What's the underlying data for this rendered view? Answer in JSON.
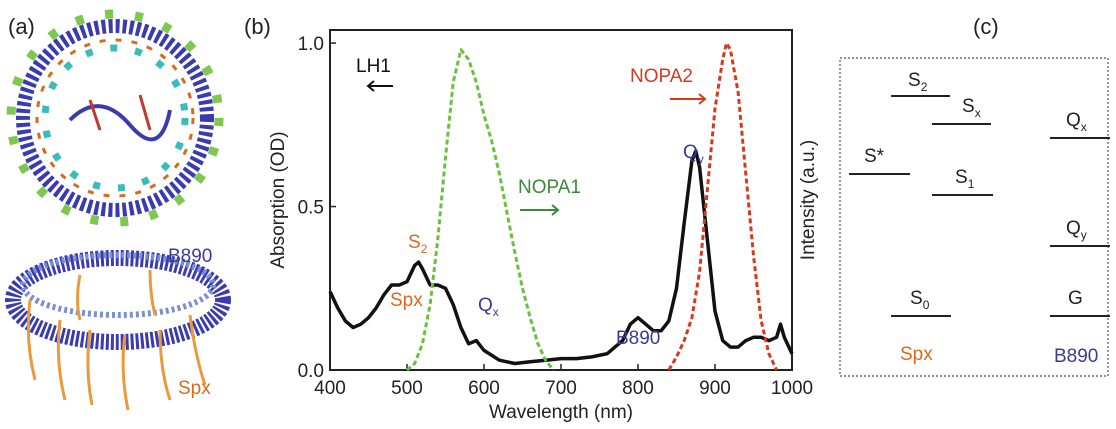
{
  "panel_labels": [
    "(a)",
    "(b)",
    "(c)"
  ],
  "panel_a": {
    "labels": [
      "B890",
      "Spx"
    ]
  },
  "chart_data": {
    "type": "line",
    "xlabel": "Wavelength (nm)",
    "ylabel": "Absorption (OD)",
    "y2label": "Intensity (a.u.)",
    "xlim": [
      400,
      1000
    ],
    "ylim": [
      0,
      1.04
    ],
    "xticks": [
      400,
      500,
      600,
      700,
      800,
      900,
      1000
    ],
    "yticks": [
      {
        "value": 0,
        "label": "0.0"
      },
      {
        "value": 0.5,
        "label": "0.5"
      },
      {
        "value": 1,
        "label": "1.0"
      }
    ],
    "series": [
      {
        "name": "LH1",
        "color": "#111111",
        "dashed": false,
        "x": [
          400,
          410,
          420,
          430,
          440,
          450,
          460,
          470,
          480,
          490,
          500,
          510,
          515,
          520,
          530,
          540,
          550,
          560,
          570,
          580,
          590,
          600,
          620,
          640,
          660,
          680,
          700,
          720,
          740,
          760,
          780,
          790,
          800,
          810,
          820,
          830,
          840,
          850,
          860,
          870,
          875,
          880,
          890,
          900,
          910,
          920,
          930,
          940,
          950,
          960,
          970,
          980,
          985,
          990,
          1000
        ],
        "values": [
          0.24,
          0.19,
          0.15,
          0.13,
          0.14,
          0.16,
          0.19,
          0.23,
          0.26,
          0.26,
          0.27,
          0.32,
          0.33,
          0.31,
          0.26,
          0.26,
          0.25,
          0.2,
          0.13,
          0.08,
          0.09,
          0.06,
          0.03,
          0.02,
          0.025,
          0.03,
          0.035,
          0.035,
          0.04,
          0.05,
          0.09,
          0.14,
          0.16,
          0.14,
          0.12,
          0.12,
          0.15,
          0.25,
          0.45,
          0.64,
          0.67,
          0.62,
          0.4,
          0.18,
          0.09,
          0.07,
          0.07,
          0.09,
          0.1,
          0.1,
          0.09,
          0.1,
          0.14,
          0.1,
          0.05
        ]
      },
      {
        "name": "NOPA1",
        "color": "#6cbf3f",
        "dashed": true,
        "x": [
          500,
          510,
          520,
          530,
          540,
          550,
          560,
          570,
          580,
          590,
          600,
          610,
          620,
          630,
          640,
          650,
          660,
          670,
          680,
          690
        ],
        "values": [
          0,
          0.02,
          0.08,
          0.2,
          0.4,
          0.65,
          0.88,
          0.98,
          0.95,
          0.88,
          0.78,
          0.7,
          0.6,
          0.48,
          0.36,
          0.25,
          0.16,
          0.08,
          0.03,
          0
        ]
      },
      {
        "name": "NOPA2",
        "color": "#d63a1e",
        "dashed": true,
        "x": [
          840,
          850,
          860,
          870,
          880,
          890,
          900,
          910,
          915,
          920,
          930,
          940,
          950,
          960,
          970,
          980
        ],
        "values": [
          0,
          0.04,
          0.09,
          0.16,
          0.3,
          0.55,
          0.8,
          0.95,
          1,
          0.98,
          0.85,
          0.6,
          0.35,
          0.15,
          0.05,
          0
        ]
      }
    ],
    "annotations": [
      {
        "text": "S",
        "sub": "2"
      },
      {
        "text": "Spx"
      },
      {
        "text": "Q",
        "sub": "x"
      },
      {
        "text": "Q",
        "sub": "y"
      },
      {
        "text": "B890"
      }
    ]
  },
  "panel_c": {
    "levels": [
      {
        "text": "S",
        "sub": "2"
      },
      {
        "text": "S",
        "sub": "x"
      },
      {
        "text": "S*"
      },
      {
        "text": "S",
        "sub": "1"
      },
      {
        "text": "S",
        "sub": "0"
      },
      {
        "text": "Q",
        "sub": "x"
      },
      {
        "text": "Q",
        "sub": "y"
      },
      {
        "text": "G"
      }
    ],
    "groups": [
      "Spx",
      "B890"
    ]
  }
}
